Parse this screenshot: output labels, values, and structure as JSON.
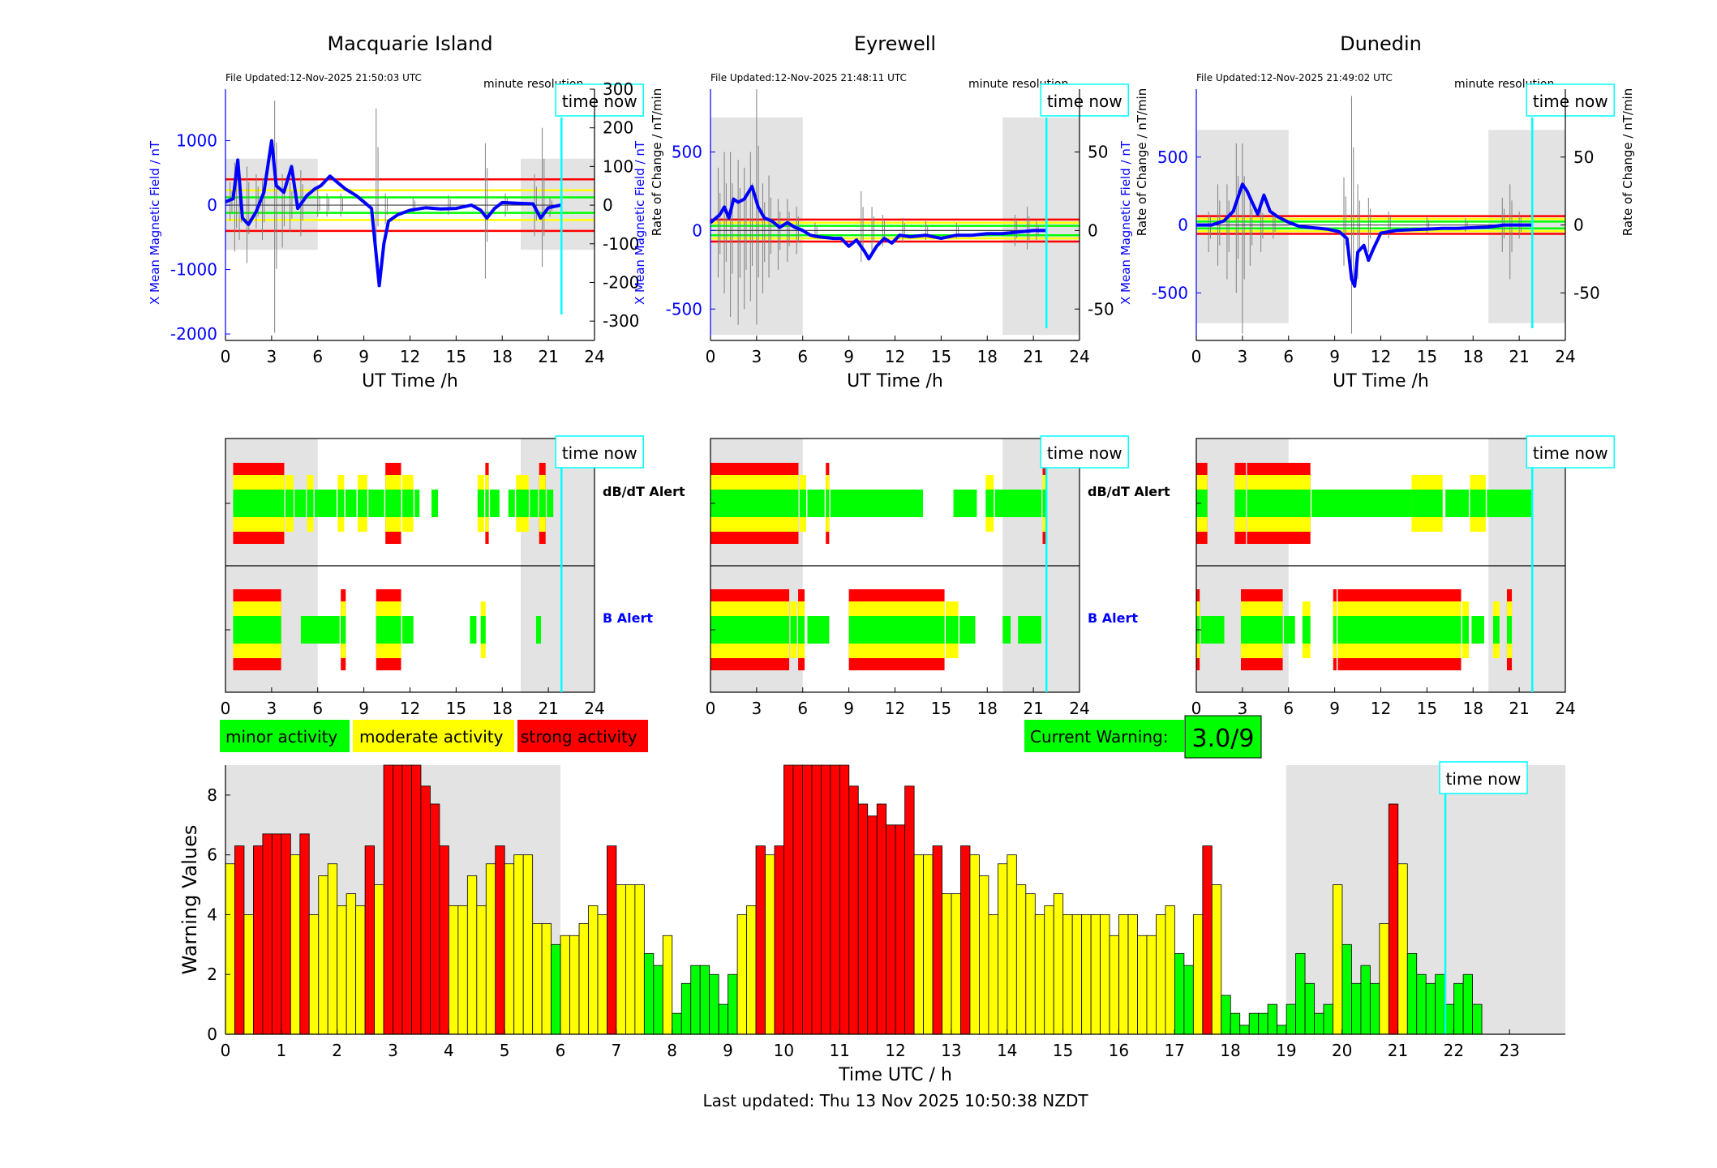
{
  "colors": {
    "minor": "#00ff00",
    "moderate": "#ffff00",
    "strong": "#ff0000",
    "shade": "#e3e3e3",
    "now": "#00ffff",
    "field": "#0000ff",
    "rate": "#808080"
  },
  "stations": [
    {
      "title": "Macquarie Island",
      "file_updated": "File Updated:12-Nov-2025 21:50:03 UTC",
      "resolution": "minute resolution",
      "time_now_label": "time now",
      "xlabel": "UT Time /h",
      "ylabel_left": "X Mean Magnetic Field / nT",
      "ylabel_right": "Rate of Change / nT/min",
      "ylim_left": [
        -2100,
        1800
      ],
      "yticks_left": [
        "-2000",
        "-1000",
        "0",
        "1000"
      ],
      "ylim_right": [
        -350,
        300
      ],
      "yticks_right": [
        "-300",
        "-200",
        "-100",
        "0",
        "100",
        "200",
        "300"
      ],
      "thresholds_nT": {
        "minor": 120,
        "moderate": 230,
        "strong": 400
      },
      "shade_hours": [
        [
          0,
          6
        ],
        [
          19.2,
          24
        ]
      ],
      "now_hour": 21.85,
      "field": [
        [
          0,
          50
        ],
        [
          0.5,
          100
        ],
        [
          0.8,
          700
        ],
        [
          1.1,
          -200
        ],
        [
          1.5,
          -300
        ],
        [
          2,
          -100
        ],
        [
          2.5,
          200
        ],
        [
          3,
          1000
        ],
        [
          3.3,
          300
        ],
        [
          3.8,
          200
        ],
        [
          4.3,
          600
        ],
        [
          4.7,
          -50
        ],
        [
          5.3,
          150
        ],
        [
          5.8,
          250
        ],
        [
          6.2,
          300
        ],
        [
          6.8,
          450
        ],
        [
          7.3,
          350
        ],
        [
          7.8,
          250
        ],
        [
          8.5,
          150
        ],
        [
          9,
          50
        ],
        [
          9.5,
          -50
        ],
        [
          10,
          -1250
        ],
        [
          10.3,
          -600
        ],
        [
          10.6,
          -250
        ],
        [
          11.2,
          -150
        ],
        [
          12,
          -80
        ],
        [
          13,
          -40
        ],
        [
          14,
          -60
        ],
        [
          15,
          -50
        ],
        [
          16,
          0
        ],
        [
          16.6,
          -80
        ],
        [
          17,
          -200
        ],
        [
          17.5,
          -50
        ],
        [
          18,
          40
        ],
        [
          19,
          30
        ],
        [
          20,
          20
        ],
        [
          20.5,
          -200
        ],
        [
          21,
          -40
        ],
        [
          21.8,
          0
        ]
      ],
      "rate_segments": [
        [
          0.3,
          -40,
          60
        ],
        [
          0.6,
          -120,
          110
        ],
        [
          0.9,
          -90,
          40
        ],
        [
          1.4,
          -150,
          100
        ],
        [
          2,
          -60,
          80
        ],
        [
          2.4,
          -90,
          70
        ],
        [
          3.2,
          -330,
          270
        ],
        [
          3.7,
          -110,
          80
        ],
        [
          4.2,
          -70,
          60
        ],
        [
          4.9,
          -80,
          90
        ],
        [
          6,
          -30,
          40
        ],
        [
          6.6,
          -30,
          30
        ],
        [
          7.5,
          -30,
          30
        ],
        [
          9.8,
          -110,
          250
        ],
        [
          10.4,
          -50,
          30
        ],
        [
          12.2,
          -20,
          20
        ],
        [
          14.5,
          -25,
          25
        ],
        [
          16.9,
          -190,
          160
        ],
        [
          18.2,
          -30,
          30
        ],
        [
          20.1,
          -80,
          80
        ],
        [
          20.6,
          -160,
          200
        ],
        [
          21.1,
          -30,
          20
        ]
      ],
      "db_alert": [
        [
          0.5,
          3.9,
          3
        ],
        [
          3.9,
          4.5,
          2
        ],
        [
          4.5,
          5.3,
          1
        ],
        [
          5.3,
          5.8,
          2
        ],
        [
          5.8,
          7.3,
          1
        ],
        [
          7.3,
          7.8,
          2
        ],
        [
          7.8,
          8.6,
          1
        ],
        [
          8.6,
          9.3,
          2
        ],
        [
          9.3,
          10.4,
          1
        ],
        [
          10.4,
          11.5,
          3
        ],
        [
          11.5,
          12.3,
          2
        ],
        [
          12.3,
          12.7,
          1
        ],
        [
          13.4,
          13.9,
          1
        ],
        [
          16.4,
          16.9,
          2
        ],
        [
          16.9,
          17.2,
          3
        ],
        [
          17.2,
          17.9,
          1
        ],
        [
          18.4,
          18.9,
          1
        ],
        [
          18.9,
          19.8,
          2
        ],
        [
          19.8,
          20.4,
          1
        ],
        [
          20.4,
          20.9,
          3
        ],
        [
          20.9,
          21.4,
          1
        ]
      ],
      "b_alert": [
        [
          0.5,
          3.7,
          3
        ],
        [
          4.9,
          7.5,
          1
        ],
        [
          7.5,
          7.9,
          3
        ],
        [
          9.8,
          11.5,
          3
        ],
        [
          11.5,
          12.3,
          1
        ],
        [
          15.9,
          16.4,
          1
        ],
        [
          16.6,
          17.0,
          2
        ],
        [
          20.2,
          20.6,
          1
        ]
      ]
    },
    {
      "title": "Eyrewell",
      "file_updated": "File Updated:12-Nov-2025 21:48:11 UTC",
      "resolution": "minute resolution",
      "time_now_label": "time now",
      "xlabel": "UT Time /h",
      "ylabel_left": "X Mean Magnetic Field / nT",
      "ylabel_right": "Rate of Change / nT/min",
      "ylim_left": [
        -700,
        900
      ],
      "yticks_left": [
        "-500",
        "0",
        "500"
      ],
      "ylim_right": [
        -70,
        90
      ],
      "yticks_right": [
        "-50",
        "0",
        "50"
      ],
      "thresholds_nT": {
        "minor": 30,
        "moderate": 50,
        "strong": 70
      },
      "shade_hours": [
        [
          0,
          6
        ],
        [
          19,
          24
        ]
      ],
      "now_hour": 21.85,
      "field": [
        [
          0,
          50
        ],
        [
          0.6,
          100
        ],
        [
          0.9,
          150
        ],
        [
          1.2,
          80
        ],
        [
          1.5,
          200
        ],
        [
          1.8,
          180
        ],
        [
          2.2,
          200
        ],
        [
          2.7,
          280
        ],
        [
          3.1,
          150
        ],
        [
          3.5,
          80
        ],
        [
          4,
          60
        ],
        [
          4.5,
          20
        ],
        [
          5,
          50
        ],
        [
          5.5,
          20
        ],
        [
          6,
          0
        ],
        [
          6.5,
          -30
        ],
        [
          7,
          -40
        ],
        [
          8,
          -50
        ],
        [
          8.5,
          -50
        ],
        [
          9,
          -100
        ],
        [
          9.5,
          -60
        ],
        [
          10,
          -130
        ],
        [
          10.3,
          -180
        ],
        [
          10.8,
          -100
        ],
        [
          11.3,
          -50
        ],
        [
          11.8,
          -80
        ],
        [
          12.3,
          -30
        ],
        [
          13,
          -40
        ],
        [
          14,
          -30
        ],
        [
          15,
          -50
        ],
        [
          16,
          -30
        ],
        [
          17,
          -30
        ],
        [
          18,
          -20
        ],
        [
          19,
          -20
        ],
        [
          20,
          -10
        ],
        [
          21,
          0
        ],
        [
          21.8,
          0
        ]
      ],
      "rate_segments": [
        [
          0.5,
          -30,
          40
        ],
        [
          0.9,
          -40,
          50
        ],
        [
          1.3,
          -55,
          50
        ],
        [
          1.8,
          -60,
          45
        ],
        [
          2.2,
          -50,
          40
        ],
        [
          2.6,
          -45,
          50
        ],
        [
          3.0,
          -60,
          90
        ],
        [
          3.4,
          -40,
          30
        ],
        [
          3.8,
          -30,
          35
        ],
        [
          4.4,
          -25,
          20
        ],
        [
          5.0,
          -20,
          20
        ],
        [
          5.6,
          -15,
          15
        ],
        [
          6.8,
          -5,
          5
        ],
        [
          9.8,
          -20,
          25
        ],
        [
          10.5,
          -15,
          15
        ],
        [
          11.2,
          -10,
          10
        ],
        [
          12.5,
          -8,
          8
        ],
        [
          14,
          -6,
          6
        ],
        [
          16,
          -5,
          5
        ],
        [
          19.8,
          -10,
          10
        ],
        [
          20.6,
          -12,
          15
        ],
        [
          21.2,
          -6,
          6
        ]
      ],
      "db_alert": [
        [
          0,
          5.8,
          3
        ],
        [
          5.8,
          6.3,
          2
        ],
        [
          6.3,
          7.5,
          1
        ],
        [
          7.5,
          7.8,
          3
        ],
        [
          7.8,
          13.9,
          1
        ],
        [
          15.8,
          17.4,
          1
        ],
        [
          17.9,
          18.5,
          2
        ],
        [
          18.5,
          21.6,
          1
        ],
        [
          21.6,
          21.9,
          3
        ]
      ],
      "b_alert": [
        [
          0,
          5.2,
          3
        ],
        [
          5.2,
          5.7,
          2
        ],
        [
          5.7,
          6.2,
          3
        ],
        [
          6.3,
          7.8,
          1
        ],
        [
          9,
          15.3,
          3
        ],
        [
          15.3,
          16.2,
          2
        ],
        [
          16.2,
          17.3,
          1
        ],
        [
          19.0,
          19.6,
          1
        ],
        [
          20.0,
          21.6,
          1
        ]
      ]
    },
    {
      "title": "Dunedin",
      "file_updated": "File Updated:12-Nov-2025 21:49:02 UTC",
      "resolution": "minute resolution",
      "time_now_label": "time now",
      "xlabel": "UT Time /h",
      "ylabel_left": "X Mean Magnetic Field / nT",
      "ylabel_right": "Rate of Change / nT/min",
      "ylim_left": [
        -850,
        1000
      ],
      "yticks_left": [
        "-500",
        "0",
        "500"
      ],
      "ylim_right": [
        -85,
        100
      ],
      "yticks_right": [
        "-50",
        "0",
        "50"
      ],
      "thresholds_nT": {
        "minor": 25,
        "moderate": 45,
        "strong": 65
      },
      "shade_hours": [
        [
          0,
          6
        ],
        [
          19,
          24
        ]
      ],
      "now_hour": 21.85,
      "field": [
        [
          0,
          0
        ],
        [
          1,
          0
        ],
        [
          1.8,
          30
        ],
        [
          2.4,
          100
        ],
        [
          2.7,
          200
        ],
        [
          3,
          300
        ],
        [
          3.3,
          250
        ],
        [
          3.7,
          150
        ],
        [
          4,
          80
        ],
        [
          4.4,
          220
        ],
        [
          4.8,
          100
        ],
        [
          5.3,
          60
        ],
        [
          6,
          20
        ],
        [
          6.7,
          -10
        ],
        [
          7.5,
          -20
        ],
        [
          8.5,
          -30
        ],
        [
          9.3,
          -50
        ],
        [
          9.8,
          -100
        ],
        [
          10.1,
          -400
        ],
        [
          10.3,
          -450
        ],
        [
          10.5,
          -200
        ],
        [
          10.9,
          -150
        ],
        [
          11.2,
          -260
        ],
        [
          11.5,
          -180
        ],
        [
          12,
          -60
        ],
        [
          13,
          -40
        ],
        [
          14,
          -35
        ],
        [
          15,
          -30
        ],
        [
          16,
          -25
        ],
        [
          17,
          -25
        ],
        [
          18,
          -20
        ],
        [
          19,
          -15
        ],
        [
          20,
          0
        ],
        [
          21,
          0
        ],
        [
          21.8,
          0
        ]
      ],
      "rate_segments": [
        [
          0.8,
          -20,
          10
        ],
        [
          1.4,
          -30,
          30
        ],
        [
          2.0,
          -40,
          30
        ],
        [
          2.6,
          -50,
          60
        ],
        [
          3.0,
          -80,
          60
        ],
        [
          3.5,
          -30,
          20
        ],
        [
          4.2,
          -20,
          15
        ],
        [
          5,
          -10,
          10
        ],
        [
          9.6,
          -30,
          35
        ],
        [
          10.1,
          -80,
          95
        ],
        [
          10.5,
          -40,
          30
        ],
        [
          11.2,
          -20,
          20
        ],
        [
          12.5,
          -10,
          10
        ],
        [
          15,
          -6,
          6
        ],
        [
          17.5,
          -5,
          5
        ],
        [
          19.9,
          -20,
          20
        ],
        [
          20.4,
          -40,
          30
        ],
        [
          21,
          -10,
          10
        ]
      ],
      "db_alert": [
        [
          0,
          0.8,
          3
        ],
        [
          2.5,
          3.3,
          3
        ],
        [
          3.3,
          7.5,
          3
        ],
        [
          7.5,
          14.1,
          1
        ],
        [
          14,
          16.1,
          2
        ],
        [
          16.2,
          17.8,
          1
        ],
        [
          17.8,
          18.9,
          2
        ],
        [
          18.9,
          21.9,
          1
        ]
      ],
      "b_alert": [
        [
          0,
          0.3,
          3
        ],
        [
          0.3,
          1.9,
          1
        ],
        [
          2.9,
          5.7,
          3
        ],
        [
          5.7,
          6.5,
          1
        ],
        [
          6.9,
          7.5,
          2
        ],
        [
          8.9,
          9.2,
          3
        ],
        [
          9.2,
          17.3,
          3
        ],
        [
          17.3,
          17.8,
          2
        ],
        [
          17.9,
          18.8,
          1
        ],
        [
          19.3,
          19.8,
          2
        ],
        [
          20.2,
          20.6,
          3
        ]
      ]
    }
  ],
  "alert_labels": {
    "db": "dB/dT Alert",
    "b": "B Alert"
  },
  "legend": {
    "minor": "minor activity",
    "moderate": "moderate activity",
    "strong": "strong activity"
  },
  "current_warning": {
    "label": "Current Warning:",
    "value": "3.0/9"
  },
  "chart_data": {
    "type": "bar",
    "ylabel": "Warning Values",
    "xlabel": "Time UTC / h",
    "ylim": [
      0,
      9
    ],
    "xlim": [
      0,
      24
    ],
    "yticks": [
      "0",
      "2",
      "4",
      "6",
      "8"
    ],
    "xticks": [
      "0",
      "1",
      "2",
      "3",
      "4",
      "5",
      "6",
      "7",
      "8",
      "9",
      "10",
      "11",
      "12",
      "13",
      "14",
      "15",
      "16",
      "17",
      "18",
      "19",
      "20",
      "21",
      "22",
      "23"
    ],
    "bin_hours": 0.1667,
    "values": [
      5.7,
      6.3,
      4.0,
      6.3,
      6.7,
      6.7,
      6.7,
      6.0,
      6.7,
      4.0,
      5.3,
      5.7,
      4.3,
      4.7,
      4.3,
      6.3,
      5.0,
      9.0,
      9.0,
      9.0,
      9.0,
      8.3,
      7.7,
      6.3,
      4.3,
      4.3,
      5.3,
      4.3,
      5.7,
      6.3,
      5.7,
      6.0,
      6.0,
      3.7,
      3.7,
      3.0,
      3.3,
      3.3,
      3.7,
      4.3,
      4.0,
      6.3,
      5.0,
      5.0,
      5.0,
      2.7,
      2.3,
      3.3,
      0.7,
      1.7,
      2.3,
      2.3,
      2.0,
      1.0,
      2.0,
      4.0,
      4.3,
      6.3,
      6.0,
      6.3,
      9.0,
      9.0,
      9.0,
      9.0,
      9.0,
      9.0,
      9.0,
      8.3,
      7.7,
      7.3,
      7.7,
      7.0,
      7.0,
      8.3,
      6.0,
      6.0,
      6.3,
      4.7,
      4.7,
      6.3,
      6.0,
      5.3,
      4.0,
      5.7,
      6.0,
      5.0,
      4.7,
      4.0,
      4.3,
      4.7,
      4.0,
      4.0,
      4.0,
      4.0,
      4.0,
      3.3,
      4.0,
      4.0,
      3.3,
      3.3,
      4.0,
      4.3,
      2.7,
      2.3,
      4.0,
      6.3,
      5.0,
      1.3,
      0.7,
      0.3,
      0.7,
      0.7,
      1.0,
      0.3,
      1.0,
      2.7,
      1.7,
      0.7,
      1.0,
      5.0,
      3.0,
      1.7,
      2.3,
      1.7,
      3.7,
      7.7,
      5.7,
      2.7,
      2.0,
      1.7,
      2.0,
      1.0,
      1.7,
      2.0,
      1.0
    ],
    "categories_by_value": "1-3 minor, 3-6.3 moderate, 6.3+ strong",
    "shade_hours": [
      [
        0,
        6
      ],
      [
        19,
        24
      ]
    ],
    "now_hour": 21.85,
    "time_now_label": "time now"
  },
  "footer": {
    "last_updated": "Last updated: Thu 13 Nov 2025 10:50:38 NZDT"
  }
}
